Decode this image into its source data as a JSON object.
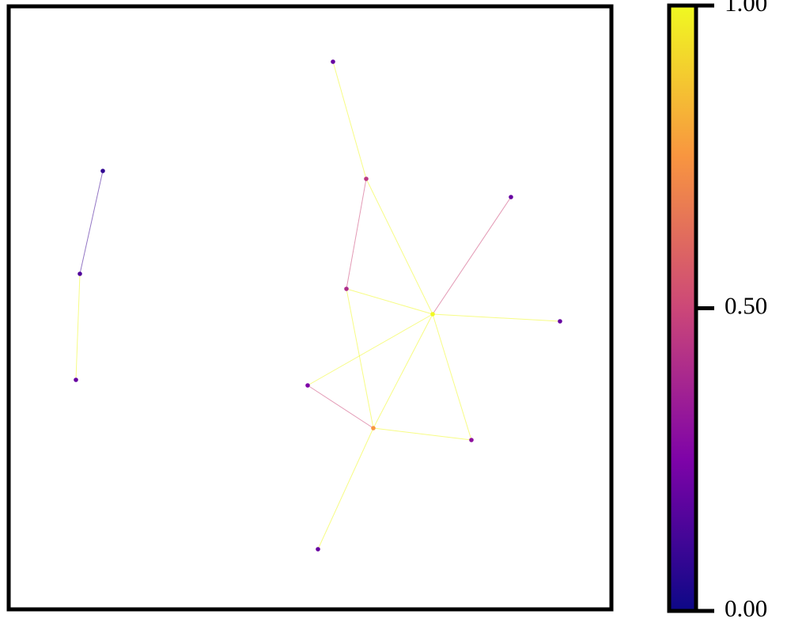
{
  "chart_data": {
    "type": "network",
    "nodes": [
      {
        "value": 0.2
      },
      {
        "value": 0.45
      },
      {
        "value": 0.4
      },
      {
        "value": 1.0
      },
      {
        "value": 0.2
      },
      {
        "value": 0.2
      },
      {
        "value": 0.25
      },
      {
        "value": 0.75
      },
      {
        "value": 0.3
      },
      {
        "value": 0.2
      },
      {
        "value": 0.08
      },
      {
        "value": 0.15
      },
      {
        "value": 0.2
      }
    ],
    "edges": [
      {
        "source": 0,
        "target": 1,
        "value": 1.0
      },
      {
        "source": 1,
        "target": 3,
        "value": 1.0
      },
      {
        "source": 1,
        "target": 2,
        "value": 0.5
      },
      {
        "source": 2,
        "target": 3,
        "value": 1.0
      },
      {
        "source": 2,
        "target": 7,
        "value": 1.0
      },
      {
        "source": 3,
        "target": 4,
        "value": 0.5
      },
      {
        "source": 3,
        "target": 5,
        "value": 1.0
      },
      {
        "source": 3,
        "target": 6,
        "value": 1.0
      },
      {
        "source": 3,
        "target": 8,
        "value": 1.0
      },
      {
        "source": 3,
        "target": 7,
        "value": 1.0
      },
      {
        "source": 6,
        "target": 7,
        "value": 0.5
      },
      {
        "source": 7,
        "target": 8,
        "value": 1.0
      },
      {
        "source": 7,
        "target": 9,
        "value": 1.0
      },
      {
        "source": 10,
        "target": 11,
        "value": 0.1
      },
      {
        "source": 11,
        "target": 12,
        "value": 1.0
      }
    ],
    "colorbar": {
      "lim": [
        0,
        1
      ],
      "ticks": [
        {
          "value": 0,
          "label": "0.00"
        },
        {
          "value": 0.5,
          "label": "0.50"
        },
        {
          "value": 1,
          "label": "1.00"
        }
      ]
    }
  }
}
